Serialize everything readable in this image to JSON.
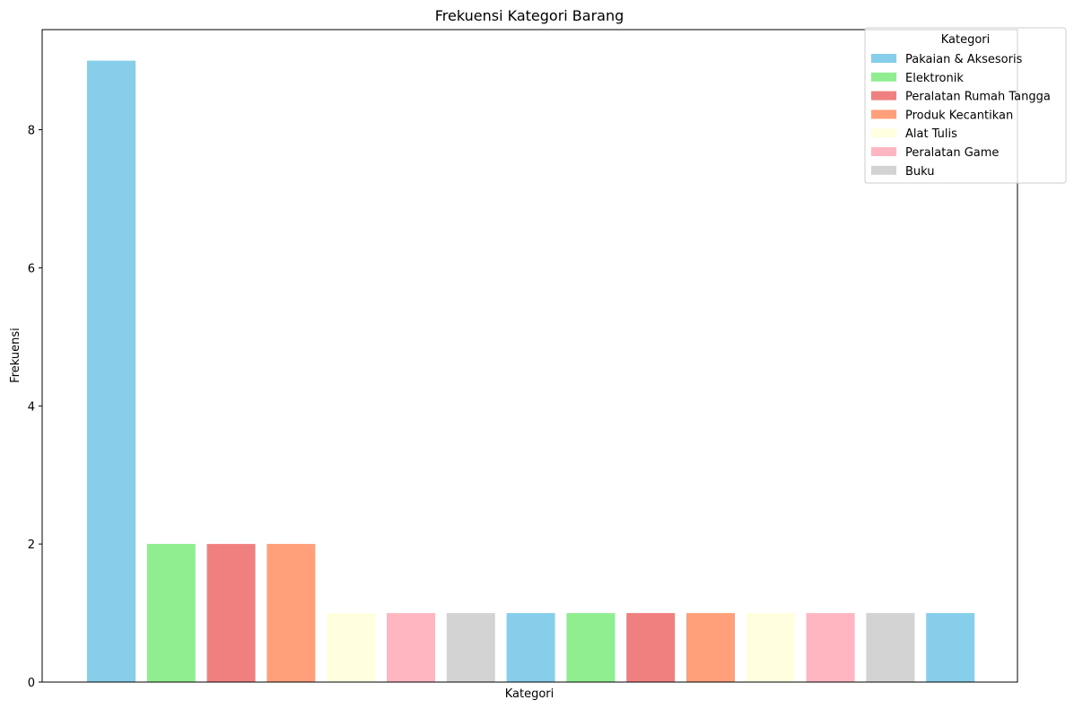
{
  "chart_data": {
    "type": "bar",
    "title": "Frekuensi Kategori Barang",
    "xlabel": "Kategori",
    "ylabel": "Frekuensi",
    "ylim": [
      0,
      9.45
    ],
    "yticks": [
      0,
      2,
      4,
      6,
      8
    ],
    "grid": false,
    "values": [
      9,
      2,
      2,
      2,
      1,
      1,
      1,
      1,
      1,
      1,
      1,
      1,
      1,
      1,
      1
    ],
    "bar_colors": [
      "#87CEEB",
      "#90EE90",
      "#F08080",
      "#FFA07A",
      "#FFFFE0",
      "#FFB6C1",
      "#D3D3D3",
      "#87CEEB",
      "#90EE90",
      "#F08080",
      "#FFA07A",
      "#FFFFE0",
      "#FFB6C1",
      "#D3D3D3",
      "#87CEEB"
    ],
    "legend": {
      "title": "Kategori",
      "placement": "top-right",
      "entries": [
        {
          "label": "Pakaian & Aksesoris",
          "color": "#87CEEB"
        },
        {
          "label": "Elektronik",
          "color": "#90EE90"
        },
        {
          "label": "Peralatan Rumah Tangga",
          "color": "#F08080"
        },
        {
          "label": "Produk Kecantikan",
          "color": "#FFA07A"
        },
        {
          "label": "Alat Tulis",
          "color": "#FFFFE0"
        },
        {
          "label": "Peralatan Game",
          "color": "#FFB6C1"
        },
        {
          "label": "Buku",
          "color": "#D3D3D3"
        }
      ]
    }
  }
}
